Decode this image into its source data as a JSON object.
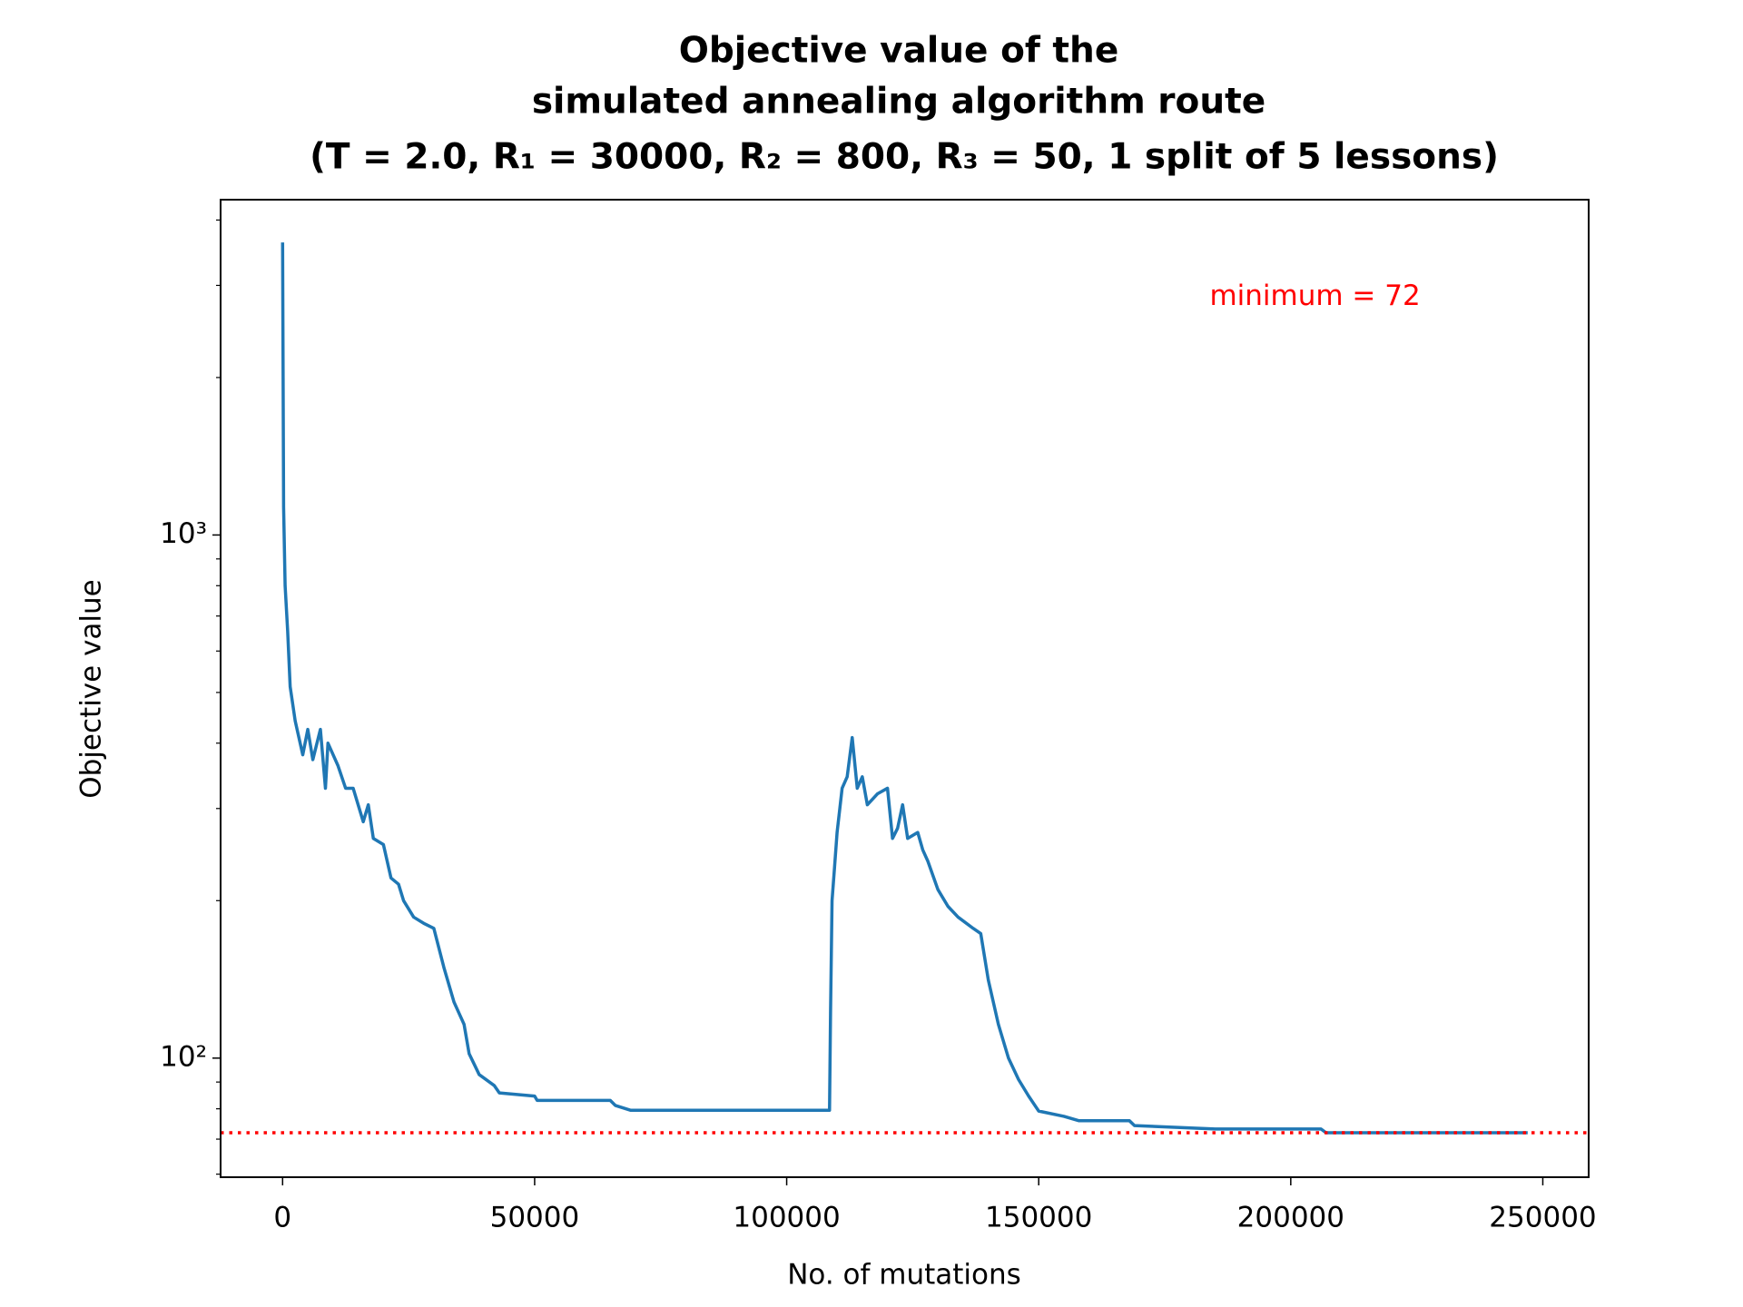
{
  "chart_data": {
    "type": "line",
    "title": [
      "Objective value of the",
      "simulated annealing algorithm route",
      "(T = 2.0, R₁ = 30000, R₂ = 800, R₃ = 50, 1 split of 5 lessons)"
    ],
    "x_label": "No. of mutations",
    "y_label": "Objective value",
    "annotation": "minimum = 72",
    "hline": {
      "value": 72,
      "color": "#ff0000",
      "style": "dotted"
    },
    "y_scale": "log",
    "grid": false,
    "xlim": [
      -12300,
      259100
    ],
    "ylim": [
      59.2,
      4375
    ],
    "xticks": [
      0,
      50000,
      100000,
      150000,
      200000,
      250000
    ],
    "yticks": [
      {
        "value": 100,
        "label": "10²"
      },
      {
        "value": 1000,
        "label": "10³"
      }
    ],
    "x": [
      0,
      200,
      500,
      1000,
      1500,
      2500,
      4000,
      5000,
      6000,
      7500,
      8500,
      9000,
      11000,
      12500,
      14000,
      16000,
      17000,
      18000,
      20000,
      21500,
      23000,
      24000,
      26000,
      28000,
      30000,
      32000,
      34000,
      36000,
      37000,
      39000,
      42000,
      43000,
      50000,
      50500,
      65000,
      66000,
      69000,
      108500,
      108700,
      109000,
      109500,
      110000,
      111000,
      112000,
      113000,
      114000,
      115000,
      116000,
      118000,
      120000,
      121000,
      122000,
      123000,
      124000,
      126000,
      127000,
      128000,
      130000,
      132000,
      134000,
      137000,
      138500,
      140000,
      142000,
      144000,
      146000,
      148000,
      150000,
      155000,
      158000,
      168000,
      169000,
      185000,
      206000,
      207000,
      247000
    ],
    "series": [
      {
        "name": "objective",
        "color": "#1f77b4",
        "values": [
          3625,
          1130,
          800,
          656,
          513,
          441,
          380,
          425,
          372,
          425,
          328,
          400,
          362,
          328,
          328,
          283,
          305,
          263,
          256,
          221,
          215,
          200,
          186,
          181,
          177,
          149,
          128,
          116,
          102,
          93,
          88.6,
          85.8,
          84.6,
          83.0,
          83.0,
          81.2,
          79.5,
          79.5,
          122,
          200,
          232,
          270,
          328,
          345,
          410,
          328,
          345,
          305,
          320,
          328,
          263,
          275,
          305,
          263,
          270,
          250,
          238,
          210,
          195,
          186,
          177,
          173,
          141,
          116,
          100,
          91,
          84.6,
          79.2,
          77.4,
          75.9,
          75.9,
          74.3,
          73.2,
          73.2,
          72,
          72
        ]
      }
    ]
  }
}
